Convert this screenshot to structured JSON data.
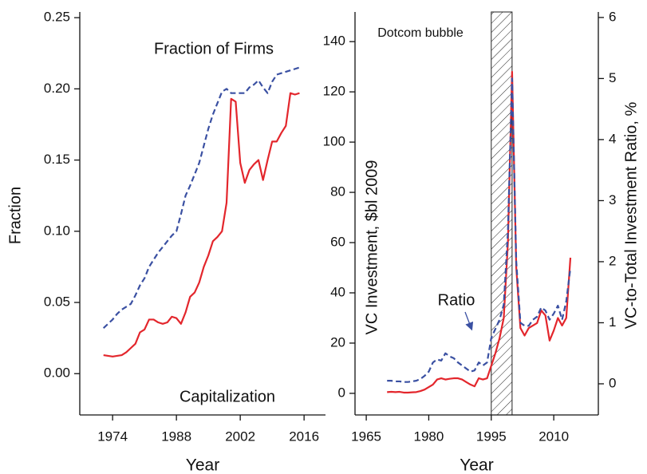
{
  "chart_data": [
    {
      "type": "line",
      "xlabel": "Year",
      "ylabel": "Fraction",
      "x": [
        1972,
        1973,
        1974,
        1975,
        1976,
        1977,
        1978,
        1979,
        1980,
        1981,
        1982,
        1983,
        1984,
        1985,
        1986,
        1987,
        1988,
        1989,
        1990,
        1991,
        1992,
        1993,
        1994,
        1995,
        1996,
        1997,
        1998,
        1999,
        2000,
        2001,
        2002,
        2003,
        2004,
        2005,
        2006,
        2007,
        2008,
        2009,
        2010,
        2011,
        2012,
        2013,
        2014,
        2015
      ],
      "xlim": [
        1966.8,
        2020.7
      ],
      "xticks": [
        1974,
        1988,
        2002,
        2016
      ],
      "ylim": [
        -0.029,
        0.254
      ],
      "yticks": [
        {
          "value": 0,
          "label": "0.00"
        },
        0.05,
        {
          "value": 0.1,
          "label": "0.10"
        },
        0.15,
        {
          "value": 0.2,
          "label": "0.20"
        },
        0.25
      ],
      "series": [
        {
          "name": "Fraction of Firms",
          "color": "#3a50a2",
          "dashed": true,
          "values": [
            0.032,
            0.035,
            0.038,
            0.042,
            0.045,
            0.047,
            0.049,
            0.055,
            0.062,
            0.067,
            0.075,
            0.08,
            0.085,
            0.089,
            0.093,
            0.097,
            0.1,
            0.112,
            0.125,
            0.132,
            0.14,
            0.148,
            0.16,
            0.172,
            0.182,
            0.19,
            0.198,
            0.2,
            0.197,
            0.197,
            0.197,
            0.197,
            0.201,
            0.203,
            0.206,
            0.201,
            0.197,
            0.205,
            0.21,
            0.211,
            0.212,
            0.213,
            0.214,
            0.215
          ]
        },
        {
          "name": "Capitalization",
          "color": "#e3262c",
          "values": [
            0.013,
            0.0125,
            0.012,
            0.0125,
            0.013,
            0.015,
            0.018,
            0.021,
            0.029,
            0.031,
            0.038,
            0.038,
            0.036,
            0.035,
            0.036,
            0.04,
            0.039,
            0.035,
            0.043,
            0.054,
            0.057,
            0.064,
            0.075,
            0.083,
            0.093,
            0.096,
            0.1,
            0.12,
            0.193,
            0.191,
            0.148,
            0.134,
            0.143,
            0.147,
            0.15,
            0.136,
            0.15,
            0.163,
            0.163,
            0.169,
            0.174,
            0.197,
            0.196,
            0.197
          ]
        }
      ]
    },
    {
      "type": "line",
      "xlabel": "Year",
      "ylabel": "VC Investment, $bl 2009",
      "y2label": "VC-to-Total Investment Ratio, %",
      "x": [
        1970,
        1971,
        1972,
        1973,
        1974,
        1975,
        1976,
        1977,
        1978,
        1979,
        1980,
        1981,
        1982,
        1983,
        1984,
        1985,
        1986,
        1987,
        1988,
        1989,
        1990,
        1991,
        1992,
        1993,
        1994,
        1995,
        1996,
        1997,
        1998,
        1999,
        2000,
        2001,
        2002,
        2003,
        2004,
        2005,
        2006,
        2007,
        2008,
        2009,
        2010,
        2011,
        2012,
        2013,
        2014
      ],
      "xlim": [
        1962.3,
        2020.7
      ],
      "xticks": [
        1965,
        1980,
        1995,
        2010
      ],
      "ylim": [
        -8.6,
        151.8
      ],
      "yticks": [
        0,
        20,
        40,
        60,
        80,
        100,
        120,
        140
      ],
      "y2lim": [
        -0.51,
        6.09
      ],
      "y2ticks": [
        0,
        1,
        2,
        3,
        4,
        5,
        6
      ],
      "highlight": {
        "label": "Dotcom bubble",
        "start": 1995,
        "end": 2000
      },
      "series": [
        {
          "color": "#e3262c",
          "values": [
            0.5,
            0.6,
            0.5,
            0.6,
            0.3,
            0.3,
            0.4,
            0.5,
            0.9,
            1.5,
            2.5,
            3.5,
            5.5,
            6,
            5.5,
            5.8,
            6,
            6,
            5.5,
            4.5,
            3.5,
            2.8,
            6,
            5.5,
            6,
            11,
            16,
            22,
            30,
            60,
            128,
            50,
            26,
            23,
            26,
            27,
            28,
            33,
            31,
            21,
            25,
            30,
            27,
            30,
            54
          ]
        },
        {
          "name": "Ratio",
          "color": "#3a50a2",
          "dashed": true,
          "axis": "y2",
          "values": [
            0.05,
            0.05,
            0.04,
            0.04,
            0.03,
            0.03,
            0.04,
            0.05,
            0.08,
            0.13,
            0.2,
            0.35,
            0.4,
            0.38,
            0.5,
            0.45,
            0.42,
            0.35,
            0.3,
            0.25,
            0.2,
            0.22,
            0.35,
            0.3,
            0.35,
            0.75,
            0.9,
            1.05,
            1.3,
            2.5,
            5.0,
            2.0,
            1.0,
            0.95,
            0.95,
            1.05,
            1.1,
            1.25,
            1.2,
            1.05,
            1.15,
            1.28,
            1.05,
            1.35,
            1.9
          ]
        }
      ]
    }
  ]
}
